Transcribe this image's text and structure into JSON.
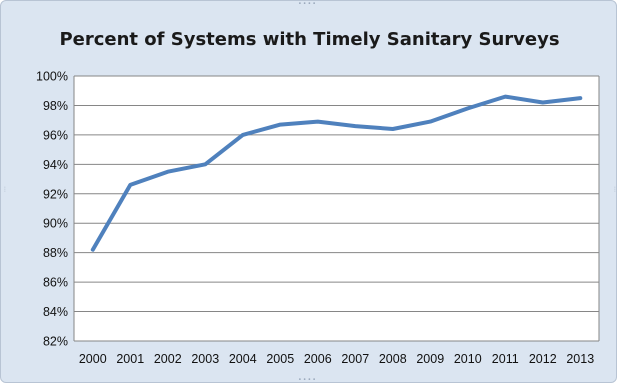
{
  "chart_data": {
    "type": "line",
    "title": "Percent of Systems with Timely Sanitary Surveys",
    "xlabel": "",
    "ylabel": "",
    "categories": [
      "2000",
      "2001",
      "2002",
      "2003",
      "2004",
      "2005",
      "2006",
      "2007",
      "2008",
      "2009",
      "2010",
      "2011",
      "2012",
      "2013"
    ],
    "series": [
      {
        "values": [
          88.2,
          92.6,
          93.5,
          94.0,
          96.0,
          96.7,
          96.9,
          96.6,
          96.4,
          96.9,
          97.8,
          98.6,
          98.2,
          98.5
        ],
        "color": "#4f81bd"
      }
    ],
    "ylim": [
      82,
      100
    ],
    "ytick_step": 2,
    "ytick_labels": [
      "82%",
      "84%",
      "86%",
      "88%",
      "90%",
      "92%",
      "94%",
      "96%",
      "98%",
      "100%"
    ],
    "grid": true,
    "legend": "none",
    "background_color": "#dbe5f1",
    "plot_background_color": "#ffffff",
    "gridline_color": "#868686"
  }
}
